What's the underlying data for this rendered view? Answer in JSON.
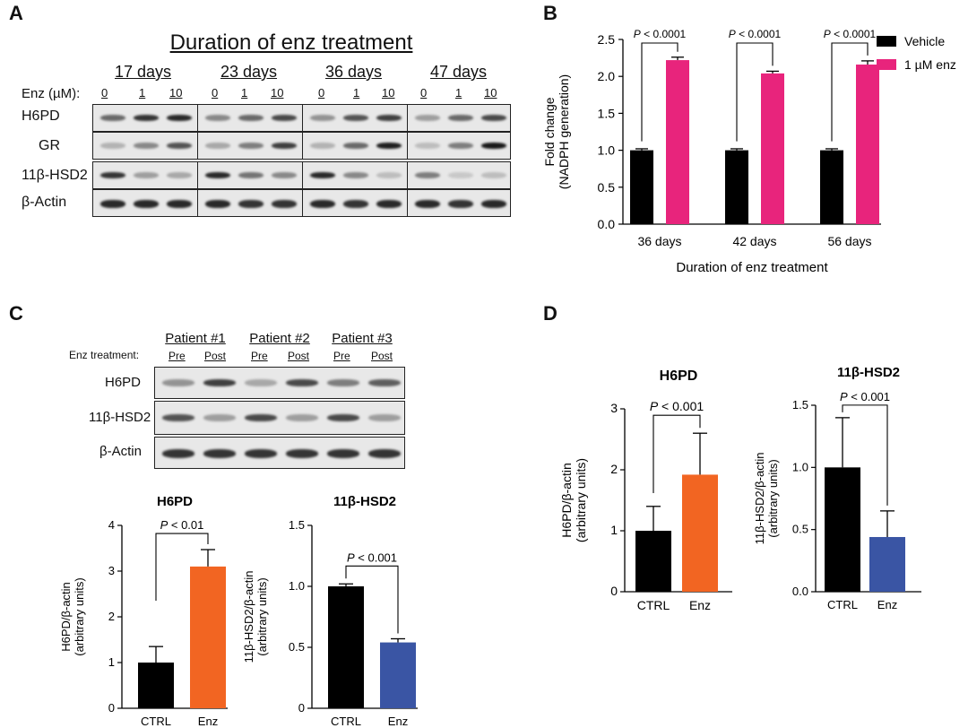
{
  "panels": {
    "a": "A",
    "b": "B",
    "c": "C",
    "d": "D"
  },
  "panel_a": {
    "title": "Duration of enz treatment",
    "enz_label": "Enz (µM):",
    "groups": [
      {
        "label": "17 days",
        "conc": [
          "0",
          "1",
          "10"
        ]
      },
      {
        "label": "23 days",
        "conc": [
          "0",
          "1",
          "10"
        ]
      },
      {
        "label": "36 days",
        "conc": [
          "0",
          "1",
          "10"
        ]
      },
      {
        "label": "47 days",
        "conc": [
          "0",
          "1",
          "10"
        ]
      }
    ],
    "rows": [
      "H6PD",
      "GR",
      "11β-HSD2",
      "β-Actin"
    ]
  },
  "panel_c_blot": {
    "treatment_label": "Enz treatment:",
    "patients": [
      {
        "label": "Patient #1",
        "pre": "Pre",
        "post": "Post"
      },
      {
        "label": "Patient #2",
        "pre": "Pre",
        "post": "Post"
      },
      {
        "label": "Patient #3",
        "pre": "Pre",
        "post": "Post"
      }
    ],
    "rows": [
      "H6PD",
      "11β-HSD2",
      "β-Actin"
    ]
  },
  "chart_data": [
    {
      "id": "B",
      "type": "bar",
      "categories": [
        "36 days",
        "42 days",
        "56 days"
      ],
      "series": [
        {
          "name": "Vehicle",
          "color": "#000000",
          "values": [
            1.0,
            1.0,
            1.0
          ],
          "errors": [
            0.02,
            0.02,
            0.02
          ]
        },
        {
          "name": "1 µM enz",
          "color": "#e8247c",
          "values": [
            2.22,
            2.04,
            2.16
          ],
          "errors": [
            0.04,
            0.03,
            0.05
          ]
        }
      ],
      "annotations": [
        "P < 0.0001",
        "P < 0.0001",
        "P < 0.0001"
      ],
      "xlabel": "Duration of enz treatment",
      "ylabel": [
        "Fold change",
        "(NADPH generation)"
      ],
      "ylim": [
        0,
        2.5
      ],
      "yticks": [
        "0.0",
        "0.5",
        "1.0",
        "1.5",
        "2.0",
        "2.5"
      ],
      "legend": "top-right"
    },
    {
      "id": "C-left",
      "type": "bar",
      "title": "H6PD",
      "categories": [
        "CTRL",
        "Enz"
      ],
      "values": [
        1.0,
        3.1
      ],
      "errors": [
        0.35,
        0.37
      ],
      "colors": [
        "#000000",
        "#f26522"
      ],
      "annotation": "P < 0.01",
      "ylabel": [
        "H6PD/β-actin",
        "(arbitrary units)"
      ],
      "ylim": [
        0,
        4
      ],
      "yticks": [
        "0",
        "1",
        "2",
        "3",
        "4"
      ]
    },
    {
      "id": "C-right",
      "type": "bar",
      "title": "11β-HSD2",
      "categories": [
        "CTRL",
        "Enz"
      ],
      "values": [
        1.0,
        0.54
      ],
      "errors": [
        0.02,
        0.03
      ],
      "colors": [
        "#000000",
        "#3a55a4"
      ],
      "annotation": "P < 0.001",
      "ylabel": [
        "11β-HSD2/β-actin",
        "(arbitrary units)"
      ],
      "ylim": [
        0,
        1.5
      ],
      "yticks": [
        "0",
        "0.5",
        "1.0",
        "1.5"
      ]
    },
    {
      "id": "D-left",
      "type": "bar",
      "title": "H6PD",
      "categories": [
        "CTRL",
        "Enz"
      ],
      "values": [
        1.0,
        1.92
      ],
      "errors": [
        0.4,
        0.68
      ],
      "colors": [
        "#000000",
        "#f26522"
      ],
      "annotation": "P < 0.001",
      "ylabel": [
        "H6PD/β-actin",
        "(arbitrary units)"
      ],
      "ylim": [
        0,
        3
      ],
      "yticks": [
        "0",
        "1",
        "2",
        "3"
      ]
    },
    {
      "id": "D-right",
      "type": "bar",
      "title": "11β-HSD2",
      "categories": [
        "CTRL",
        "Enz"
      ],
      "values": [
        1.0,
        0.44
      ],
      "errors": [
        0.4,
        0.21
      ],
      "colors": [
        "#000000",
        "#3a55a4"
      ],
      "annotation": "P < 0.001",
      "ylabel": [
        "11β-HSD2/β-actin",
        "(arbitrary units)"
      ],
      "ylim": [
        0,
        1.5
      ],
      "yticks": [
        "0.0",
        "0.5",
        "1.0",
        "1.5"
      ]
    }
  ]
}
